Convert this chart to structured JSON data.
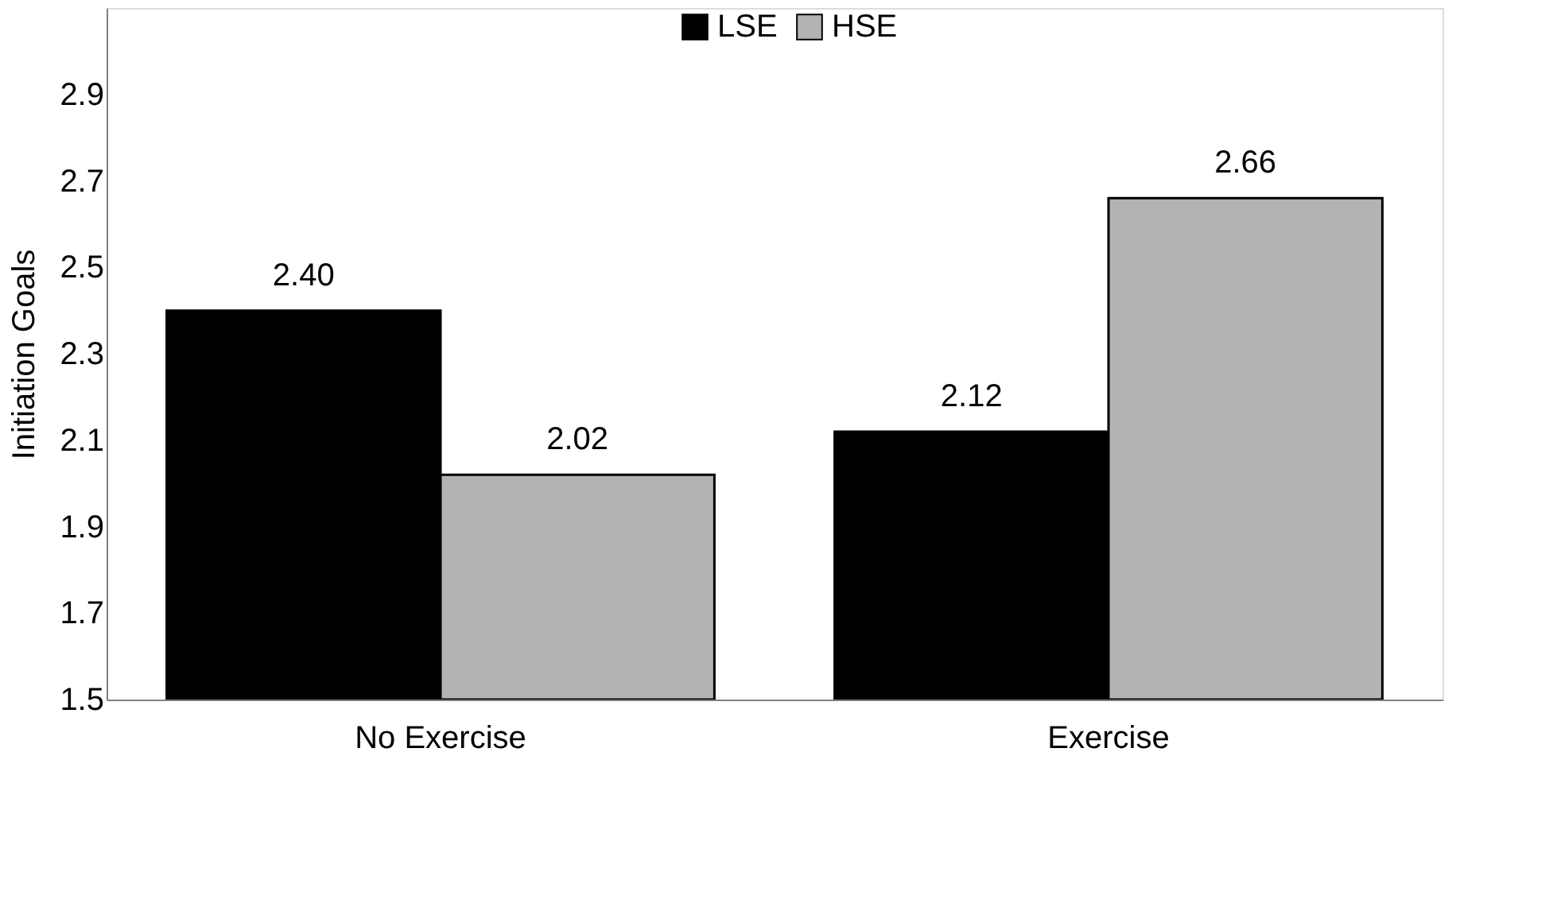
{
  "chart_data": {
    "type": "bar",
    "ylabel": "Initiation Goals",
    "categories": [
      "No Exercise",
      "Exercise"
    ],
    "series": [
      {
        "name": "LSE",
        "color": "#000000",
        "values": [
          2.4,
          2.12
        ],
        "value_labels": [
          "2.40",
          "2.12"
        ]
      },
      {
        "name": "HSE",
        "color": "#b3b3b3",
        "values": [
          2.02,
          2.66
        ],
        "value_labels": [
          "2.02",
          "2.66"
        ]
      }
    ],
    "ylim": [
      1.5,
      3.1
    ],
    "yticks": [
      1.5,
      1.7,
      1.9,
      2.1,
      2.3,
      2.5,
      2.7,
      2.9
    ],
    "grid": false,
    "legend": "top"
  }
}
